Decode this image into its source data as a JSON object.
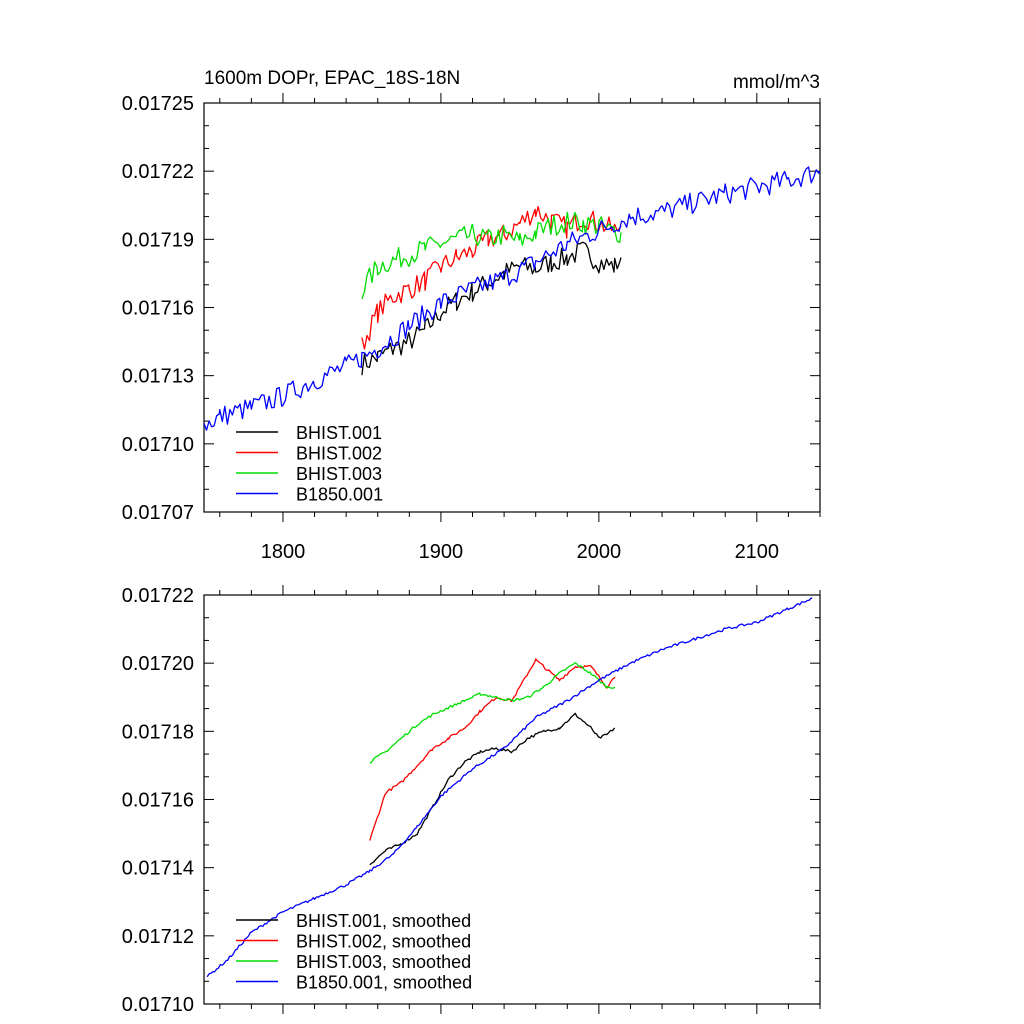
{
  "chart_data": [
    {
      "type": "line",
      "title": "1600m DOPr, EPAC_18S-18N",
      "units": "mmol/m^3",
      "xlabel": "",
      "ylabel": "",
      "xlim": [
        1750,
        2140
      ],
      "ylim": [
        0.01707,
        0.01725
      ],
      "yticks": [
        "0.01725",
        "0.01722",
        "0.01719",
        "0.01716",
        "0.01713",
        "0.01710",
        "0.01707"
      ],
      "xticks": [
        "1800",
        "1900",
        "2000",
        "2100"
      ],
      "legend_position": "bottom-left",
      "series": [
        {
          "name": "BHIST.001",
          "color": "#000000",
          "x": [
            1850,
            1860,
            1870,
            1880,
            1890,
            1900,
            1910,
            1920,
            1930,
            1940,
            1950,
            1960,
            1970,
            1980,
            1990,
            2000,
            2010,
            2014
          ],
          "y": [
            0.017135,
            0.017138,
            0.017142,
            0.017145,
            0.01715,
            0.017158,
            0.017163,
            0.017167,
            0.017171,
            0.017175,
            0.017178,
            0.017177,
            0.01718,
            0.017182,
            0.017185,
            0.01718,
            0.017178,
            0.017182
          ]
        },
        {
          "name": "BHIST.002",
          "color": "#ff0000",
          "x": [
            1850,
            1860,
            1870,
            1880,
            1890,
            1900,
            1910,
            1920,
            1930,
            1940,
            1950,
            1960,
            1970,
            1980,
            1990,
            2000,
            2010,
            2014
          ],
          "y": [
            0.017143,
            0.017158,
            0.017165,
            0.017168,
            0.017172,
            0.017178,
            0.017182,
            0.017185,
            0.01719,
            0.017192,
            0.017197,
            0.017203,
            0.017198,
            0.017195,
            0.0172,
            0.017197,
            0.017194,
            0.017196
          ]
        },
        {
          "name": "BHIST.003",
          "color": "#00dd00",
          "x": [
            1850,
            1860,
            1870,
            1880,
            1890,
            1900,
            1910,
            1920,
            1930,
            1940,
            1950,
            1960,
            1970,
            1980,
            1990,
            2000,
            2010,
            2014
          ],
          "y": [
            0.017168,
            0.017178,
            0.017181,
            0.017183,
            0.017186,
            0.017188,
            0.01719,
            0.017192,
            0.01719,
            0.017192,
            0.017189,
            0.017193,
            0.017196,
            0.017198,
            0.017197,
            0.017196,
            0.017193,
            0.017193
          ]
        },
        {
          "name": "B1850.001",
          "color": "#0000ff",
          "x": [
            1750,
            1760,
            1780,
            1800,
            1820,
            1840,
            1850,
            1860,
            1880,
            1900,
            1920,
            1940,
            1960,
            1980,
            2000,
            2020,
            2040,
            2060,
            2080,
            2100,
            2120,
            2140
          ],
          "y": [
            0.017108,
            0.017112,
            0.017116,
            0.017121,
            0.017128,
            0.017134,
            0.017138,
            0.017142,
            0.017152,
            0.017162,
            0.017168,
            0.017173,
            0.01718,
            0.017188,
            0.017194,
            0.0172,
            0.017202,
            0.017206,
            0.01721,
            0.017213,
            0.017216,
            0.01722
          ]
        }
      ]
    },
    {
      "type": "line",
      "title": "",
      "xlabel": "",
      "ylabel": "",
      "xlim": [
        1750,
        2140
      ],
      "ylim": [
        0.0171,
        0.01722
      ],
      "yticks": [
        "0.01722",
        "0.01720",
        "0.01718",
        "0.01716",
        "0.01714",
        "0.01712",
        "0.01710"
      ],
      "legend_position": "bottom-left",
      "series": [
        {
          "name": "BHIST.001, smoothed",
          "color": "#000000",
          "x": [
            1855,
            1865,
            1875,
            1885,
            1895,
            1905,
            1915,
            1925,
            1935,
            1945,
            1955,
            1965,
            1975,
            1985,
            1995,
            2000,
            2005,
            2010
          ],
          "y": [
            0.017141,
            0.017145,
            0.017147,
            0.01715,
            0.017158,
            0.017166,
            0.017171,
            0.017174,
            0.017175,
            0.017174,
            0.017178,
            0.01718,
            0.017181,
            0.017185,
            0.017181,
            0.017178,
            0.017179,
            0.017181
          ]
        },
        {
          "name": "BHIST.002, smoothed",
          "color": "#ff0000",
          "x": [
            1855,
            1865,
            1875,
            1885,
            1895,
            1905,
            1915,
            1925,
            1935,
            1945,
            1955,
            1960,
            1965,
            1975,
            1985,
            1995,
            2005,
            2010
          ],
          "y": [
            0.017148,
            0.017162,
            0.017165,
            0.01717,
            0.017175,
            0.017178,
            0.017181,
            0.017186,
            0.01719,
            0.017189,
            0.017197,
            0.017201,
            0.017199,
            0.017195,
            0.017199,
            0.017199,
            0.017193,
            0.017196
          ]
        },
        {
          "name": "BHIST.003, smoothed",
          "color": "#00dd00",
          "x": [
            1855,
            1865,
            1875,
            1885,
            1895,
            1905,
            1915,
            1925,
            1935,
            1945,
            1955,
            1965,
            1975,
            1985,
            1995,
            2005,
            2010
          ],
          "y": [
            0.017171,
            0.017174,
            0.017178,
            0.017182,
            0.017185,
            0.017187,
            0.017189,
            0.017191,
            0.01719,
            0.017189,
            0.01719,
            0.017193,
            0.017197,
            0.0172,
            0.017197,
            0.017193,
            0.017193
          ]
        },
        {
          "name": "B1850.001, smoothed",
          "color": "#0000ff",
          "x": [
            1752,
            1765,
            1780,
            1800,
            1820,
            1840,
            1855,
            1870,
            1885,
            1900,
            1920,
            1940,
            1960,
            1980,
            2000,
            2020,
            2040,
            2060,
            2080,
            2100,
            2120,
            2135
          ],
          "y": [
            0.017108,
            0.017113,
            0.017121,
            0.017127,
            0.017131,
            0.017135,
            0.017139,
            0.017144,
            0.017152,
            0.017161,
            0.017169,
            0.017175,
            0.017184,
            0.017189,
            0.017195,
            0.0172,
            0.017204,
            0.017207,
            0.01721,
            0.017212,
            0.017216,
            0.017219
          ]
        }
      ]
    }
  ]
}
